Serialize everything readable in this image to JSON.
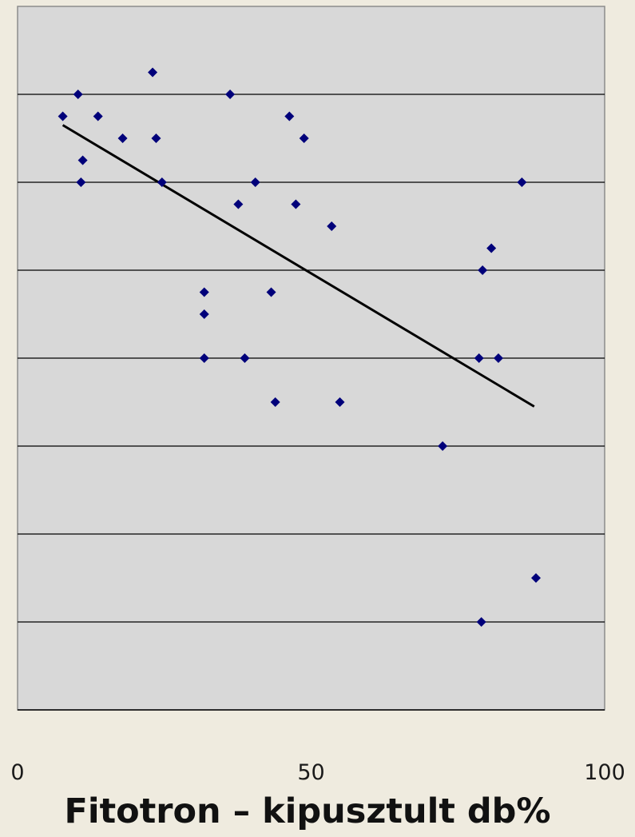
{
  "chart_data": {
    "type": "scatter",
    "title": "",
    "xlabel": "Fitotron – kipusztult db%",
    "ylabel": "",
    "xlim": [
      0,
      100
    ],
    "ylim": [
      0,
      8
    ],
    "x_ticks": [
      "0",
      "50",
      "100"
    ],
    "y_ticks": [
      1,
      2,
      3,
      4,
      5,
      6,
      7,
      8
    ],
    "y_tick_labels_visible": false,
    "grid": "horizontal",
    "colors": {
      "plot_bg": "#d8d8d8",
      "page_bg": "#efebdf",
      "marker": "#00007a",
      "trendline": "#000000",
      "gridline": "#000000"
    },
    "points": [
      {
        "x": 7.7,
        "y": 6.75
      },
      {
        "x": 10.3,
        "y": 7.0
      },
      {
        "x": 13.7,
        "y": 6.75
      },
      {
        "x": 11.1,
        "y": 6.25
      },
      {
        "x": 10.8,
        "y": 6.0
      },
      {
        "x": 17.9,
        "y": 6.5
      },
      {
        "x": 23.0,
        "y": 7.25
      },
      {
        "x": 23.6,
        "y": 6.5
      },
      {
        "x": 24.6,
        "y": 6.0
      },
      {
        "x": 31.8,
        "y": 4.75
      },
      {
        "x": 31.8,
        "y": 4.5
      },
      {
        "x": 31.8,
        "y": 4.0
      },
      {
        "x": 36.2,
        "y": 7.0
      },
      {
        "x": 37.6,
        "y": 5.75
      },
      {
        "x": 38.7,
        "y": 4.0
      },
      {
        "x": 40.5,
        "y": 6.0
      },
      {
        "x": 43.2,
        "y": 4.75
      },
      {
        "x": 43.9,
        "y": 3.5
      },
      {
        "x": 46.3,
        "y": 6.75
      },
      {
        "x": 47.4,
        "y": 5.75
      },
      {
        "x": 48.8,
        "y": 6.5
      },
      {
        "x": 53.5,
        "y": 5.5
      },
      {
        "x": 54.9,
        "y": 3.5
      },
      {
        "x": 72.4,
        "y": 3.0
      },
      {
        "x": 78.6,
        "y": 4.0
      },
      {
        "x": 79.0,
        "y": 1.0
      },
      {
        "x": 79.2,
        "y": 5.0
      },
      {
        "x": 80.7,
        "y": 5.25
      },
      {
        "x": 81.9,
        "y": 4.0
      },
      {
        "x": 85.9,
        "y": 6.0
      },
      {
        "x": 88.3,
        "y": 1.5
      }
    ],
    "trendline": {
      "type": "linear",
      "x": [
        7.7,
        88.0
      ],
      "y": [
        6.65,
        3.45
      ]
    }
  }
}
